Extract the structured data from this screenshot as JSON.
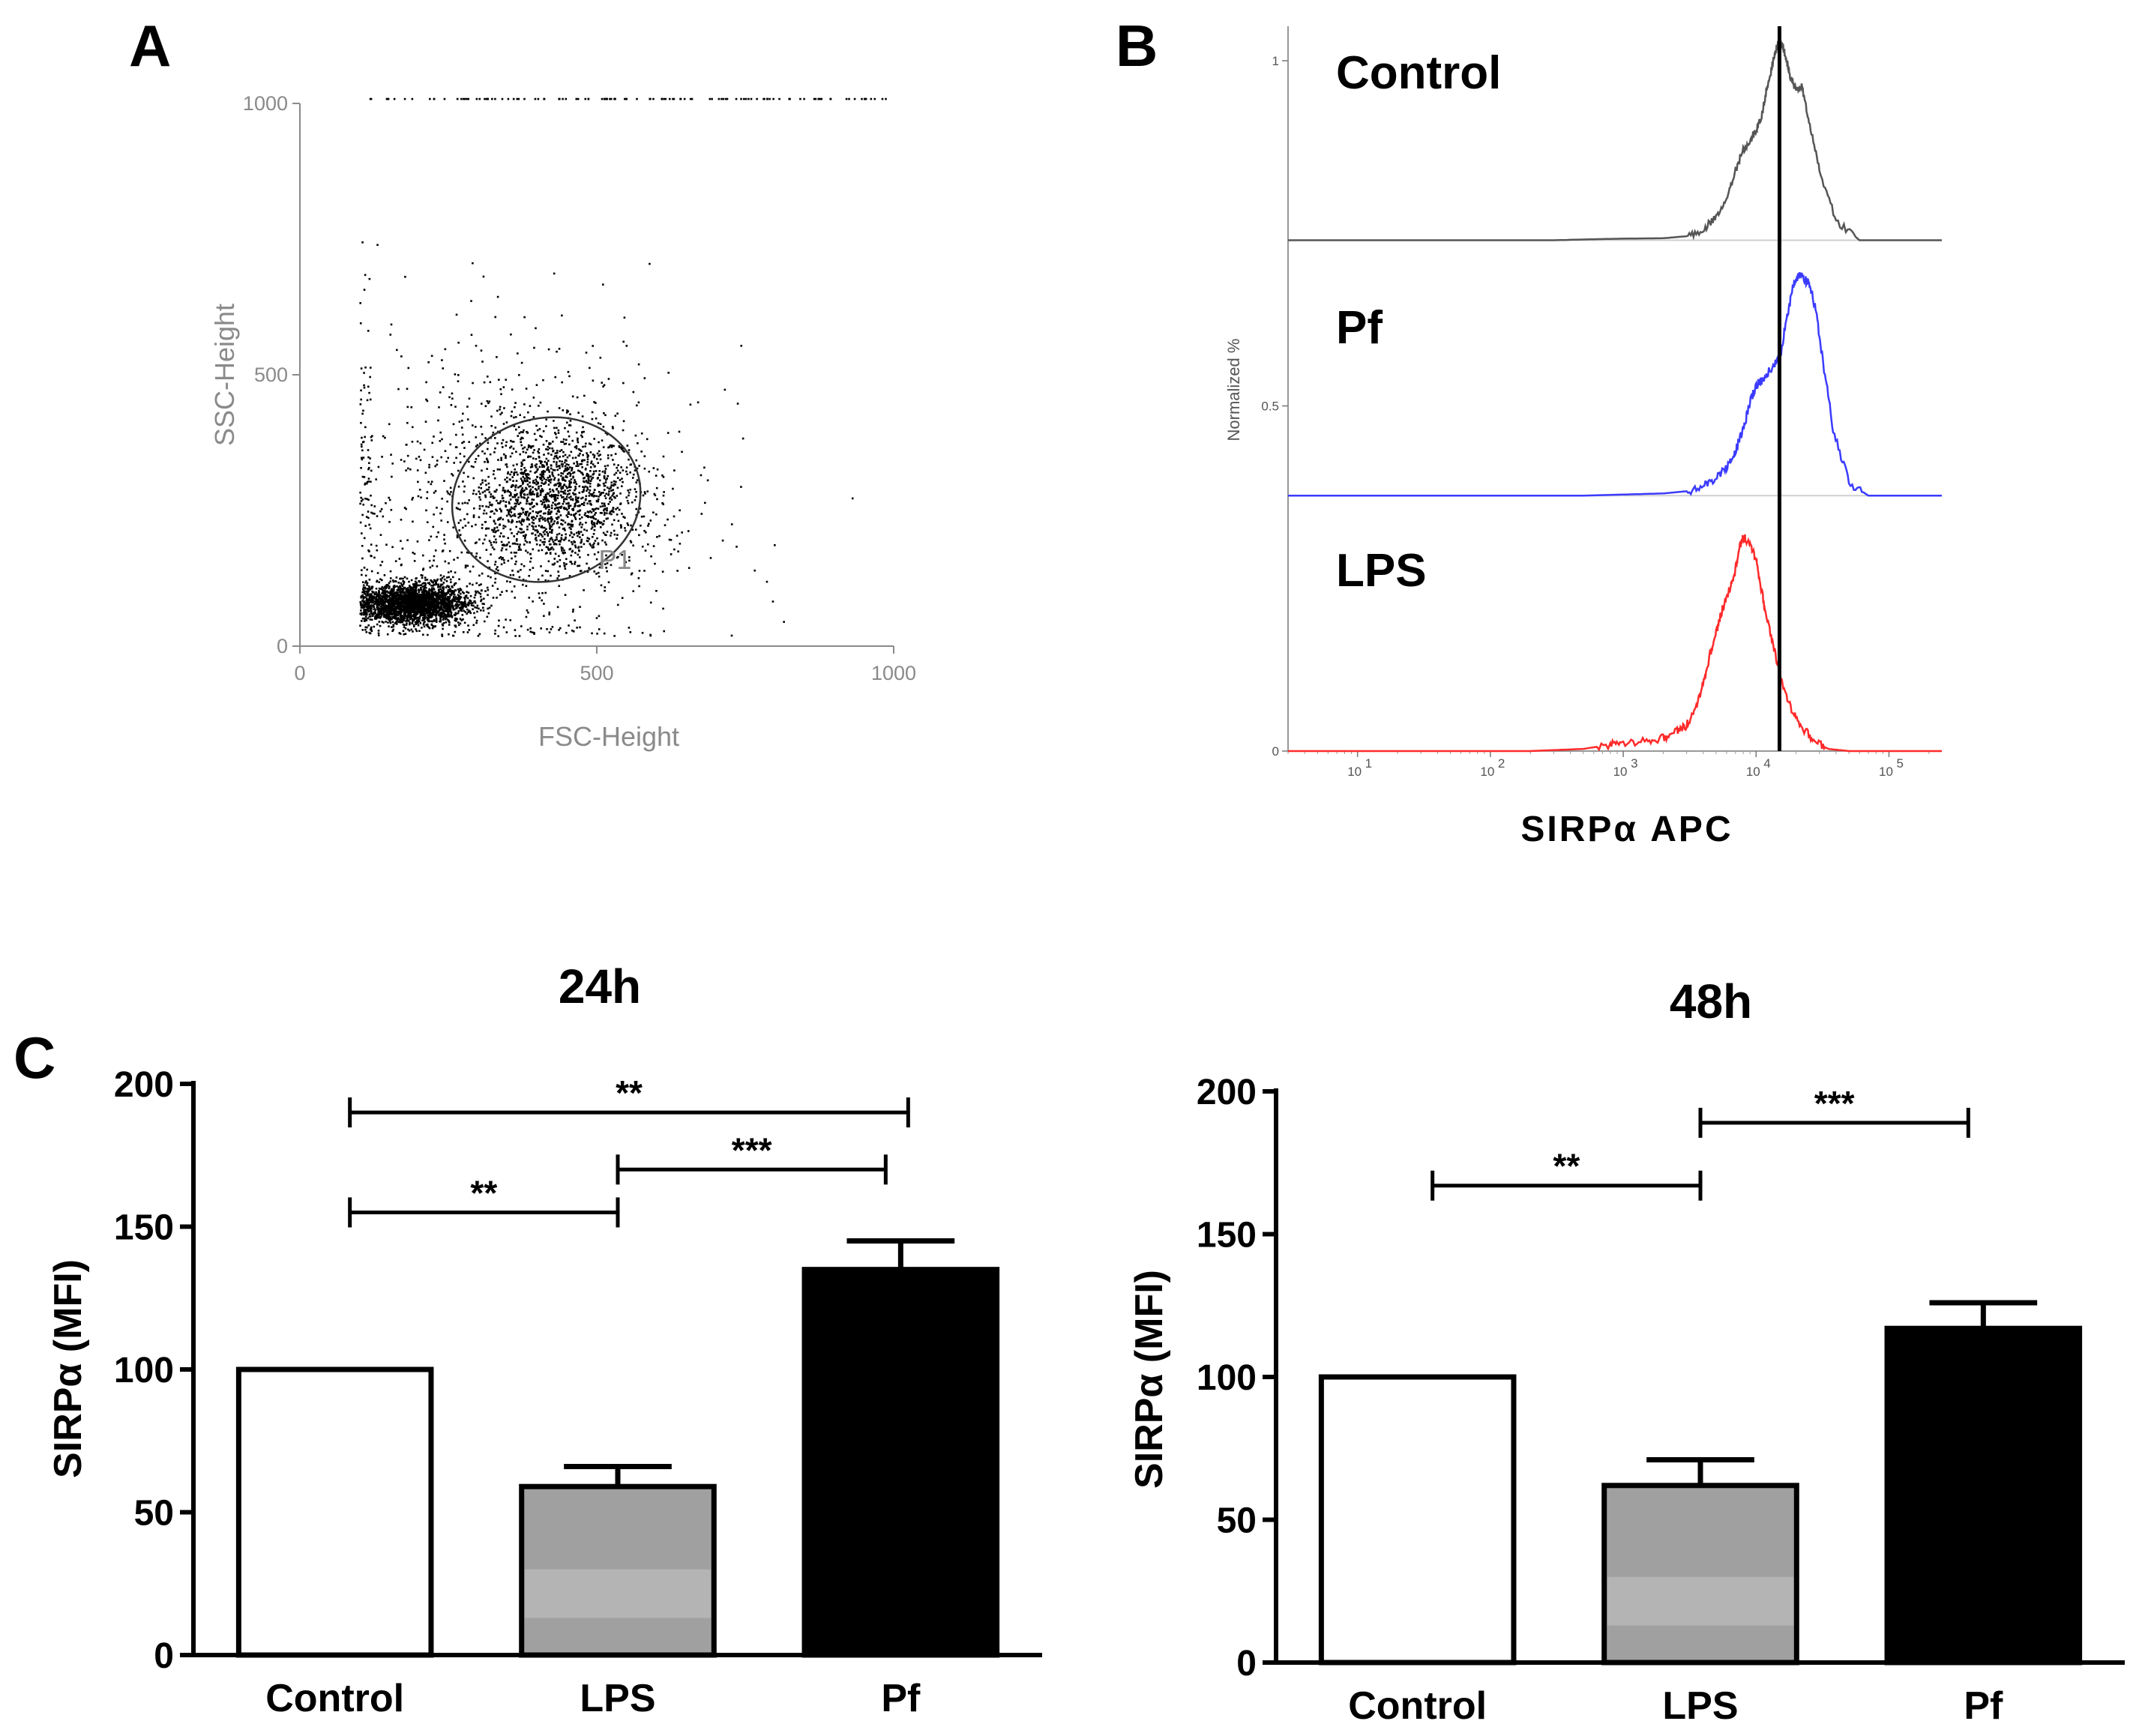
{
  "panels": {
    "a": "A",
    "b": "B",
    "c": "C"
  },
  "chart_data": [
    {
      "type": "scatter",
      "panel": "A",
      "xlabel": "FSC-Height",
      "ylabel": "SSC-Height",
      "xlim": [
        0,
        1000
      ],
      "ylim": [
        0,
        1000
      ],
      "xticks": [
        "0",
        "500",
        "1000"
      ],
      "yticks": [
        "0",
        "500",
        "1000"
      ],
      "gate": {
        "label": "P1",
        "center": [
          415,
          270
        ],
        "rx": 160,
        "ry": 150,
        "rotation_deg": -15
      },
      "populations": [
        {
          "x_center": 430,
          "y_center": 270,
          "x_spread": 75,
          "y_spread": 65,
          "count": 1500
        },
        {
          "x_center": 190,
          "y_center": 80,
          "x_spread": 45,
          "y_spread": 18,
          "count": 2600
        },
        {
          "x_center": 320,
          "y_center": 260,
          "x_spread": 170,
          "y_spread": 170,
          "count": 900
        }
      ],
      "color": "#000000"
    },
    {
      "type": "line",
      "panel": "B",
      "xlabel": "SIRPα APC",
      "ylabel": "Normalized %",
      "x_scale": "log",
      "xlim": [
        3,
        250000
      ],
      "ylim": [
        0,
        1.05
      ],
      "xticks": [
        10,
        100,
        1000,
        10000,
        100000
      ],
      "xtick_labels": [
        "10",
        "10",
        "10",
        "10",
        "10"
      ],
      "xtick_exponents": [
        "1",
        "2",
        "3",
        "4",
        "5"
      ],
      "yticks": [
        0,
        0.5,
        1
      ],
      "ytick_labels": [
        "0",
        "0.5",
        "1"
      ],
      "marker_x": 15000,
      "series": [
        {
          "name": "Control",
          "color": "#555555",
          "baseline": 0.74,
          "peak": 1.03,
          "x": [
            3,
            300,
            600,
            1000,
            2000,
            3000,
            4000,
            5000,
            6000,
            7000,
            8000,
            9000,
            10000,
            11000,
            12000,
            13000,
            14000,
            15000,
            16000,
            17000,
            18000,
            20000,
            22000,
            25000,
            30000,
            40000,
            60000,
            250000
          ],
          "y": [
            0,
            0,
            0.005,
            0.008,
            0.01,
            0.02,
            0.05,
            0.12,
            0.2,
            0.35,
            0.45,
            0.5,
            0.55,
            0.62,
            0.75,
            0.85,
            0.95,
            1.0,
            0.96,
            0.9,
            0.82,
            0.75,
            0.78,
            0.6,
            0.35,
            0.1,
            0.0,
            0
          ]
        },
        {
          "name": "Pf",
          "color": "#3b3bff",
          "baseline": 0.37,
          "peak": 0.69,
          "x": [
            3,
            500,
            1000,
            2000,
            3000,
            4000,
            5000,
            6000,
            7000,
            8000,
            9000,
            10000,
            11000,
            13000,
            15000,
            17000,
            19000,
            21000,
            23000,
            25000,
            28000,
            32000,
            38000,
            50000,
            70000,
            250000
          ],
          "y": [
            0,
            0,
            0.005,
            0.01,
            0.02,
            0.04,
            0.08,
            0.13,
            0.2,
            0.3,
            0.42,
            0.5,
            0.52,
            0.58,
            0.62,
            0.8,
            0.95,
            1.0,
            0.98,
            0.96,
            0.85,
            0.6,
            0.3,
            0.06,
            0.0,
            0
          ]
        },
        {
          "name": "LPS",
          "color": "#ff2a2a",
          "baseline": 0.0,
          "peak": 0.31,
          "x": [
            3,
            200,
            500,
            800,
            1000,
            1500,
            2000,
            2500,
            3000,
            3500,
            4000,
            4500,
            5000,
            5500,
            6000,
            6500,
            7000,
            7500,
            8000,
            9000,
            10000,
            11000,
            12000,
            14000,
            16000,
            19000,
            23000,
            28000,
            35000,
            50000,
            250000
          ],
          "y": [
            0,
            0,
            0.01,
            0.03,
            0.04,
            0.05,
            0.06,
            0.09,
            0.12,
            0.2,
            0.32,
            0.45,
            0.55,
            0.65,
            0.72,
            0.78,
            0.85,
            0.95,
            1.0,
            0.97,
            0.9,
            0.75,
            0.62,
            0.45,
            0.3,
            0.18,
            0.1,
            0.04,
            0.01,
            0,
            0
          ]
        }
      ]
    },
    {
      "type": "bar",
      "panel": "C",
      "title": "24h",
      "ylabel": "SIRPα (MFI)",
      "ylim": [
        0,
        200
      ],
      "yticks": [
        0,
        50,
        100,
        150,
        200
      ],
      "categories": [
        "Control",
        "LPS",
        "Pf"
      ],
      "values": [
        100,
        59,
        135
      ],
      "errors": [
        0,
        7,
        10
      ],
      "fills": [
        "#ffffff",
        "#a0a0a0",
        "#000000"
      ],
      "significance": [
        {
          "from": 0,
          "to": 1,
          "y": 155,
          "label": "**"
        },
        {
          "from": 1,
          "to": 2,
          "y": 170,
          "label": "***"
        },
        {
          "from": 0,
          "to": 2,
          "y": 190,
          "label": "**"
        }
      ]
    },
    {
      "type": "bar",
      "panel": "C",
      "title": "48h",
      "ylabel": "SIRPα (MFI)",
      "ylim": [
        0,
        200
      ],
      "yticks": [
        0,
        50,
        100,
        150,
        200
      ],
      "categories": [
        "Control",
        "LPS",
        "Pf"
      ],
      "values": [
        100,
        62,
        117
      ],
      "errors": [
        0,
        9,
        9
      ],
      "fills": [
        "#ffffff",
        "#a0a0a0",
        "#000000"
      ],
      "significance": [
        {
          "from": 0,
          "to": 1,
          "y": 167,
          "label": "**"
        },
        {
          "from": 1,
          "to": 2,
          "y": 189,
          "label": "***"
        }
      ]
    }
  ]
}
